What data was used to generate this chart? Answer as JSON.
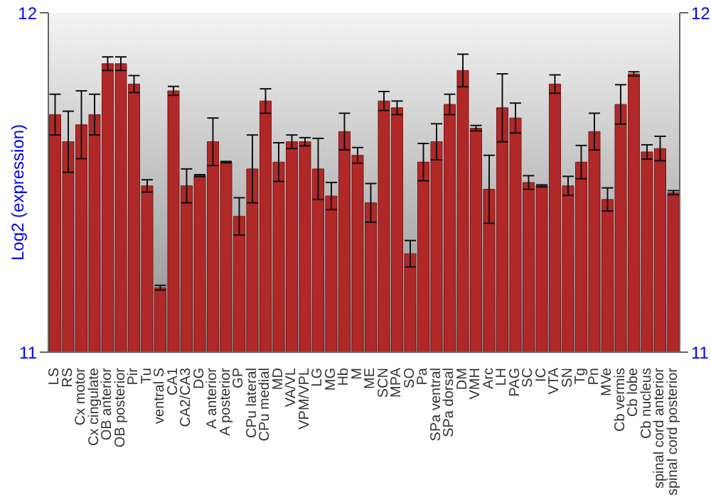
{
  "chart_data": {
    "type": "bar",
    "ylabel": "Log2 (expression)",
    "categories": [
      "LS",
      "RS",
      "Cx motor",
      "Cx cingulate",
      "OB anterior",
      "OB posterior",
      "Pir",
      "Tu",
      "ventral S",
      "CA1",
      "CA2/CA3",
      "DG",
      "A anterior",
      "A posterior",
      "GP",
      "CPu lateral",
      "CPu medial",
      "MD",
      "VA/VL",
      "VPM/VPL",
      "LG",
      "MG",
      "Hb",
      "M",
      "ME",
      "SCN",
      "MPA",
      "SO",
      "Pa",
      "SPa ventral",
      "SPa dorsal",
      "DM",
      "VMH",
      "Arc",
      "LH",
      "PAG",
      "SC",
      "IC",
      "VTA",
      "SN",
      "Tg",
      "Pn",
      "MVe",
      "Cb vermis",
      "Cb lobe",
      "Cb nucleus",
      "spinal cord anterior",
      "spinal cord posterior"
    ],
    "values": [
      11.7,
      11.62,
      11.67,
      11.7,
      11.85,
      11.85,
      11.79,
      11.49,
      11.19,
      11.77,
      11.49,
      11.52,
      11.62,
      11.56,
      11.4,
      11.54,
      11.74,
      11.56,
      11.62,
      11.62,
      11.54,
      11.46,
      11.65,
      11.58,
      11.44,
      11.74,
      11.72,
      11.29,
      11.56,
      11.62,
      11.73,
      11.83,
      11.66,
      11.48,
      11.72,
      11.69,
      11.5,
      11.49,
      11.79,
      11.49,
      11.56,
      11.65,
      11.45,
      11.73,
      11.82,
      11.59,
      11.6,
      11.47
    ],
    "errors": [
      0.06,
      0.09,
      0.1,
      0.06,
      0.02,
      0.02,
      0.025,
      0.018,
      0.007,
      0.013,
      0.05,
      0.003,
      0.07,
      0.002,
      0.055,
      0.1,
      0.036,
      0.057,
      0.02,
      0.012,
      0.09,
      0.04,
      0.054,
      0.023,
      0.057,
      0.028,
      0.02,
      0.039,
      0.055,
      0.053,
      0.03,
      0.048,
      0.008,
      0.1,
      0.1,
      0.044,
      0.02,
      0.003,
      0.027,
      0.028,
      0.049,
      0.054,
      0.034,
      0.058,
      0.006,
      0.021,
      0.036,
      0.006
    ],
    "color": "#b02828",
    "ylim": [
      11,
      12
    ],
    "yticks": [
      11,
      12
    ],
    "y2lim": [
      11,
      12
    ],
    "y2ticks": [
      11,
      12
    ],
    "grid": false
  }
}
